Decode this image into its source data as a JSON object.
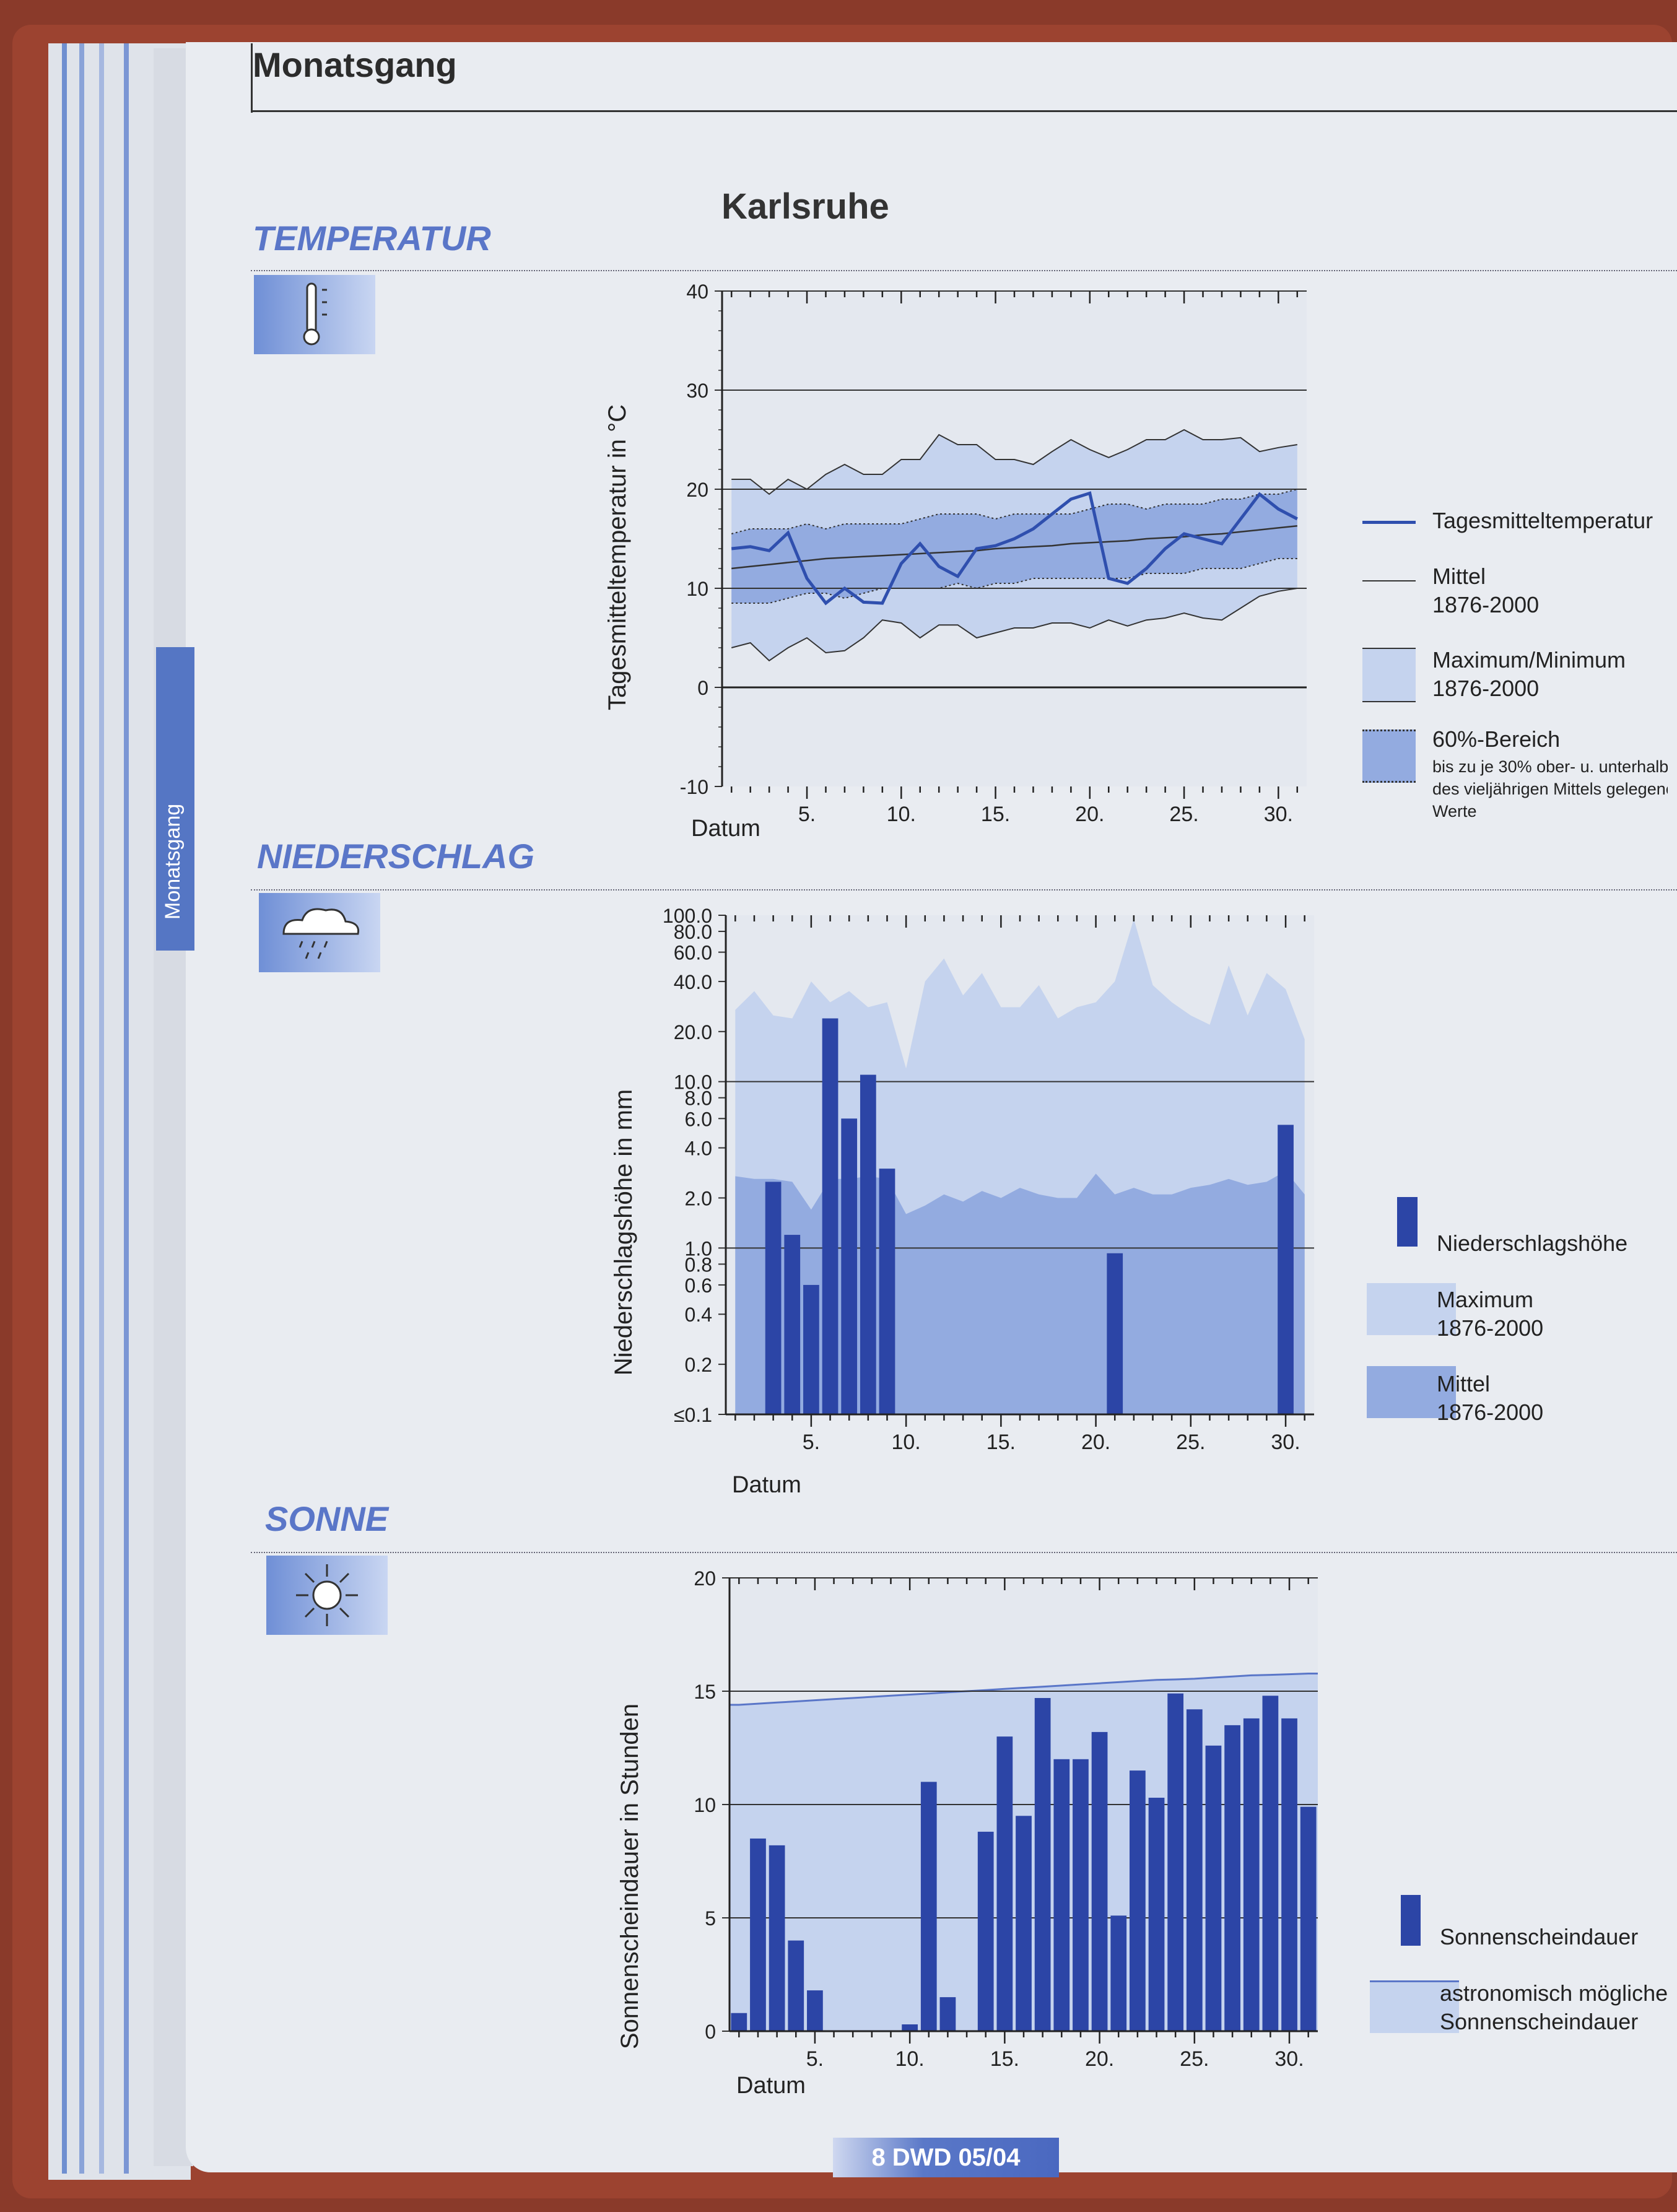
{
  "header": {
    "title": "Monatsgang"
  },
  "sidebar": {
    "tab_label": "Monatsgang"
  },
  "city": "Karlsruhe",
  "sections": {
    "temperature": "TEMPERATUR",
    "precipitation": "NIEDERSCHLAG",
    "sun": "SONNE"
  },
  "footer": {
    "text": "8  DWD 05/04"
  },
  "icons": [
    "thermometer-icon",
    "rain-cloud-icon",
    "sun-icon"
  ],
  "colors": {
    "series": "#2f4fae",
    "light": "#c5d3ee",
    "mid": "#93abe0",
    "bar": "#2c45a6",
    "accent": "#5a76c8"
  },
  "legends": {
    "temperature": {
      "daily": "Tagesmitteltemperatur",
      "mean": [
        "Mittel",
        "1876-2000"
      ],
      "maxmin": [
        "Maximum/Minimum",
        "1876-2000"
      ],
      "band": [
        "60%-Bereich"
      ],
      "band_note": [
        "bis zu je 30% ober- u. unterhalb",
        "des vieljährigen Mittels gelegene",
        "Werte"
      ]
    },
    "precipitation": {
      "amount": "Niederschlagshöhe",
      "max": [
        "Maximum",
        "1876-2000"
      ],
      "mean": [
        "Mittel",
        "1876-2000"
      ]
    },
    "sun": {
      "duration": "Sonnenscheindauer",
      "astro": [
        "astronomisch mögliche",
        "Sonnenscheindauer"
      ]
    }
  },
  "chart_data": [
    {
      "type": "line",
      "title": "Karlsruhe",
      "xlabel": "Datum",
      "ylabel": "Tagesmitteltemperatur in °C",
      "xlim": [
        1,
        31
      ],
      "ylim": [
        -10,
        40
      ],
      "yticks": [
        -10,
        0,
        10,
        20,
        30,
        40
      ],
      "xticks": [
        5,
        10,
        15,
        20,
        25,
        30
      ],
      "xtick_labels": [
        "5.",
        "10.",
        "15.",
        "20.",
        "25.",
        "30."
      ],
      "x": [
        1,
        2,
        3,
        4,
        5,
        6,
        7,
        8,
        9,
        10,
        11,
        12,
        13,
        14,
        15,
        16,
        17,
        18,
        19,
        20,
        21,
        22,
        23,
        24,
        25,
        26,
        27,
        28,
        29,
        30,
        31
      ],
      "series": [
        {
          "name": "Tagesmitteltemperatur",
          "values": [
            14.0,
            14.2,
            13.8,
            15.6,
            11.0,
            8.5,
            10.0,
            8.6,
            8.5,
            12.5,
            14.5,
            12.2,
            11.2,
            14.0,
            14.3,
            15.0,
            16.0,
            17.5,
            19.0,
            19.6,
            11.0,
            10.5,
            12.0,
            14.0,
            15.5,
            15.0,
            14.5,
            17.0,
            19.5,
            18.0,
            17.0
          ]
        },
        {
          "name": "Mittel 1876-2000",
          "values": [
            12.0,
            12.2,
            12.4,
            12.6,
            12.8,
            13.0,
            13.1,
            13.2,
            13.3,
            13.4,
            13.5,
            13.6,
            13.7,
            13.8,
            14.0,
            14.1,
            14.2,
            14.3,
            14.5,
            14.6,
            14.7,
            14.8,
            15.0,
            15.1,
            15.2,
            15.4,
            15.5,
            15.7,
            15.9,
            16.1,
            16.3
          ]
        },
        {
          "name": "Maximum 1876-2000",
          "values": [
            21.0,
            21.0,
            19.5,
            21.0,
            20.0,
            21.5,
            22.5,
            21.5,
            21.5,
            23.0,
            23.0,
            25.5,
            24.5,
            24.5,
            23.0,
            23.0,
            22.5,
            23.8,
            25.0,
            24.0,
            23.2,
            24.0,
            25.0,
            25.0,
            26.0,
            25.0,
            25.0,
            25.2,
            23.8,
            24.2,
            24.5
          ]
        },
        {
          "name": "Minimum 1876-2000",
          "values": [
            4.0,
            4.5,
            2.7,
            4.0,
            5.0,
            3.5,
            3.7,
            5.0,
            6.8,
            6.5,
            5.0,
            6.3,
            6.3,
            5.0,
            5.5,
            6.0,
            6.0,
            6.5,
            6.5,
            6.0,
            6.8,
            6.2,
            6.8,
            7.0,
            7.5,
            7.0,
            6.8,
            8.0,
            9.2,
            9.7,
            10.0
          ]
        },
        {
          "name": "60%-Bereich oben",
          "values": [
            15.5,
            16.0,
            16.0,
            16.0,
            16.5,
            16.0,
            16.5,
            16.5,
            16.5,
            16.5,
            17.0,
            17.5,
            17.5,
            17.5,
            17.0,
            17.5,
            17.5,
            17.5,
            17.5,
            18.0,
            18.5,
            18.5,
            18.0,
            18.5,
            18.5,
            18.5,
            19.0,
            19.0,
            19.5,
            19.5,
            20.0
          ]
        },
        {
          "name": "60%-Bereich unten",
          "values": [
            8.5,
            8.5,
            8.5,
            9.0,
            9.5,
            9.5,
            9.0,
            9.5,
            10.0,
            10.0,
            10.0,
            10.0,
            10.5,
            10.0,
            10.5,
            10.5,
            11.0,
            11.0,
            11.0,
            11.0,
            11.0,
            11.0,
            11.5,
            11.5,
            11.5,
            12.0,
            12.0,
            12.0,
            12.5,
            13.0,
            13.0
          ]
        }
      ]
    },
    {
      "type": "bar",
      "xlabel": "Datum",
      "ylabel": "Niederschlagshöhe in mm",
      "scale": "log",
      "xlim": [
        1,
        31
      ],
      "ylim": [
        0.1,
        100
      ],
      "yticks": [
        0.1,
        0.2,
        0.4,
        0.6,
        0.8,
        1.0,
        2.0,
        4.0,
        6.0,
        8.0,
        10.0,
        20.0,
        40.0,
        60.0,
        80.0,
        100.0
      ],
      "ytick_labels": [
        "≤0.1",
        "0.2",
        "0.4",
        "0.6",
        "0.8",
        "1.0",
        "2.0",
        "4.0",
        "6.0",
        "8.0",
        "10.0",
        "20.0",
        "40.0",
        "60.0",
        "80.0",
        "100.0"
      ],
      "xticks": [
        5,
        10,
        15,
        20,
        25,
        30
      ],
      "xtick_labels": [
        "5.",
        "10.",
        "15.",
        "20.",
        "25.",
        "30."
      ],
      "x": [
        1,
        2,
        3,
        4,
        5,
        6,
        7,
        8,
        9,
        10,
        11,
        12,
        13,
        14,
        15,
        16,
        17,
        18,
        19,
        20,
        21,
        22,
        23,
        24,
        25,
        26,
        27,
        28,
        29,
        30,
        31
      ],
      "series": [
        {
          "name": "Niederschlagshöhe",
          "values": [
            0,
            0,
            2.5,
            1.2,
            0.6,
            24,
            6,
            11,
            3,
            0,
            0,
            0,
            0,
            0,
            0,
            0,
            0,
            0,
            0,
            0,
            0.93,
            0,
            0,
            0,
            0,
            0,
            0,
            0,
            0,
            5.5,
            0
          ]
        },
        {
          "name": "Maximum 1876-2000",
          "values": [
            27,
            35,
            25,
            24,
            40,
            30,
            35,
            28,
            30,
            12,
            40,
            55,
            33,
            45,
            28,
            28,
            38,
            24,
            28,
            30,
            40,
            95,
            38,
            30,
            25,
            22,
            50,
            25,
            45,
            36,
            18
          ]
        },
        {
          "name": "Mittel 1876-2000",
          "values": [
            2.7,
            2.6,
            2.6,
            2.5,
            1.7,
            2.6,
            2.6,
            2.7,
            2.6,
            1.6,
            1.8,
            2.1,
            1.9,
            2.2,
            2.0,
            2.3,
            2.1,
            2.0,
            2.0,
            2.8,
            2.1,
            2.3,
            2.1,
            2.1,
            2.3,
            2.4,
            2.6,
            2.4,
            2.5,
            2.9,
            2.1
          ]
        }
      ]
    },
    {
      "type": "bar",
      "xlabel": "Datum",
      "ylabel": "Sonnenscheindauer in Stunden",
      "xlim": [
        1,
        31
      ],
      "ylim": [
        0,
        20
      ],
      "yticks": [
        0,
        5,
        10,
        15,
        20
      ],
      "xticks": [
        5,
        10,
        15,
        20,
        25,
        30
      ],
      "xtick_labels": [
        "5.",
        "10.",
        "15.",
        "20.",
        "25.",
        "30."
      ],
      "x": [
        1,
        2,
        3,
        4,
        5,
        6,
        7,
        8,
        9,
        10,
        11,
        12,
        13,
        14,
        15,
        16,
        17,
        18,
        19,
        20,
        21,
        22,
        23,
        24,
        25,
        26,
        27,
        28,
        29,
        30,
        31
      ],
      "series": [
        {
          "name": "Sonnenscheindauer",
          "values": [
            0.8,
            8.5,
            8.2,
            4.0,
            1.8,
            0,
            0,
            0,
            0,
            0.3,
            11.0,
            1.5,
            0,
            8.8,
            13.0,
            9.5,
            14.7,
            12.0,
            12.0,
            13.2,
            5.1,
            11.5,
            10.3,
            14.9,
            14.2,
            12.6,
            13.5,
            13.8,
            14.8,
            13.8,
            9.9
          ]
        },
        {
          "name": "astronomisch mögliche Sonnenscheindauer",
          "values": [
            14.4,
            14.45,
            14.5,
            14.55,
            14.6,
            14.65,
            14.7,
            14.75,
            14.8,
            14.85,
            14.9,
            14.95,
            15.0,
            15.05,
            15.1,
            15.15,
            15.2,
            15.25,
            15.3,
            15.35,
            15.4,
            15.45,
            15.5,
            15.52,
            15.55,
            15.6,
            15.65,
            15.7,
            15.72,
            15.75,
            15.78
          ]
        }
      ]
    }
  ]
}
